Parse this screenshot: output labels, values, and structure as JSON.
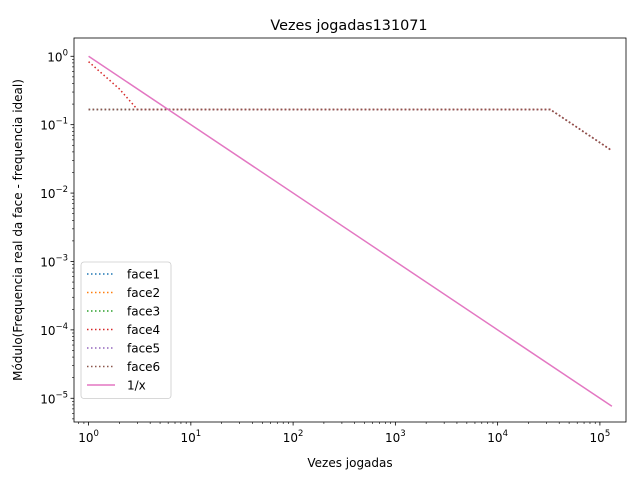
{
  "chart_data": {
    "type": "line",
    "title": "Vezes jogadas131071",
    "xlabel": "Vezes jogadas",
    "ylabel": "Módulo(Frequencia real da face - frequencia ideal)",
    "xscale": "log",
    "yscale": "log",
    "xlim": [
      0.72,
      180000
    ],
    "ylim": [
      4.5e-06,
      1.85
    ],
    "grid": false,
    "legend_position": "lower-left",
    "x_ticks": [
      {
        "value": 1,
        "base": "10",
        "exp": "0"
      },
      {
        "value": 10,
        "base": "10",
        "exp": "1"
      },
      {
        "value": 100,
        "base": "10",
        "exp": "2"
      },
      {
        "value": 1000,
        "base": "10",
        "exp": "3"
      },
      {
        "value": 10000,
        "base": "10",
        "exp": "4"
      },
      {
        "value": 100000,
        "base": "10",
        "exp": "5"
      }
    ],
    "y_ticks": [
      {
        "value": 1,
        "base": "10",
        "exp": "0"
      },
      {
        "value": 0.1,
        "base": "10",
        "exp": "−1"
      },
      {
        "value": 0.01,
        "base": "10",
        "exp": "−2"
      },
      {
        "value": 0.001,
        "base": "10",
        "exp": "−3"
      },
      {
        "value": 0.0001,
        "base": "10",
        "exp": "−4"
      },
      {
        "value": 1e-05,
        "base": "10",
        "exp": "−5"
      }
    ],
    "series": [
      {
        "name": "face1",
        "color": "#1f77b4",
        "style": "dotted",
        "x": [
          1,
          32768,
          131071
        ],
        "y": [
          0.1667,
          0.1667,
          0.0417
        ]
      },
      {
        "name": "face2",
        "color": "#ff7f0e",
        "style": "dotted",
        "x": [
          1,
          32768,
          131071
        ],
        "y": [
          0.1667,
          0.1667,
          0.0417
        ]
      },
      {
        "name": "face3",
        "color": "#2ca02c",
        "style": "dotted",
        "x": [
          1,
          32768,
          131071
        ],
        "y": [
          0.1667,
          0.1667,
          0.0417
        ]
      },
      {
        "name": "face4",
        "color": "#d62728",
        "style": "dotted",
        "x": [
          1,
          2,
          3,
          32768,
          131071
        ],
        "y": [
          0.8333,
          0.3333,
          0.1667,
          0.1667,
          0.0417
        ]
      },
      {
        "name": "face5",
        "color": "#9467bd",
        "style": "dotted",
        "x": [
          1,
          32768,
          131071
        ],
        "y": [
          0.1667,
          0.1667,
          0.0417
        ]
      },
      {
        "name": "face6",
        "color": "#8c564b",
        "style": "dotted",
        "x": [
          1,
          32768,
          131071
        ],
        "y": [
          0.1667,
          0.1667,
          0.0417
        ]
      },
      {
        "name": "1/x",
        "color": "#e377c2",
        "style": "solid",
        "x": [
          1,
          131071
        ],
        "y": [
          1,
          7.63e-06
        ]
      }
    ]
  }
}
